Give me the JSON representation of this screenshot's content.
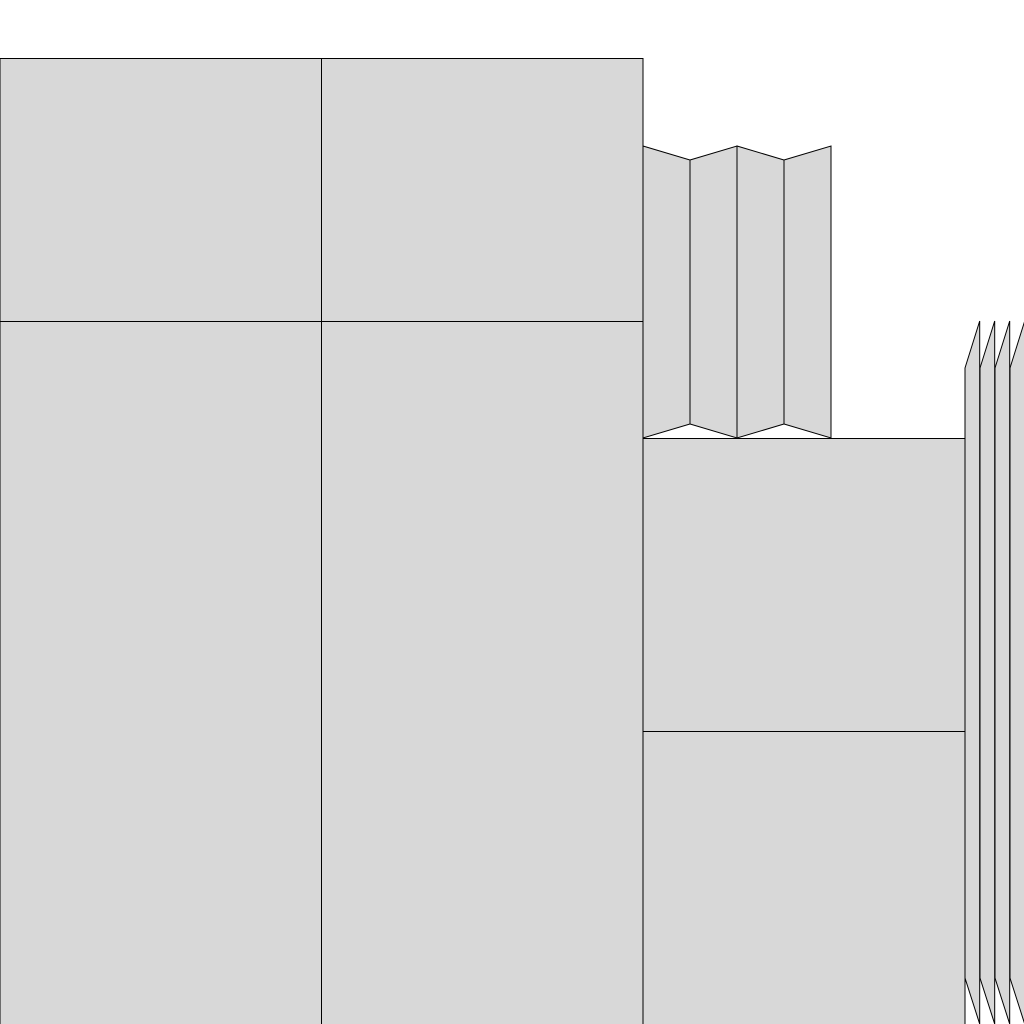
{
  "colors": {
    "background": "#ffffff",
    "tile_fill": "#d8d8d8",
    "tile_stroke": "#000000"
  }
}
